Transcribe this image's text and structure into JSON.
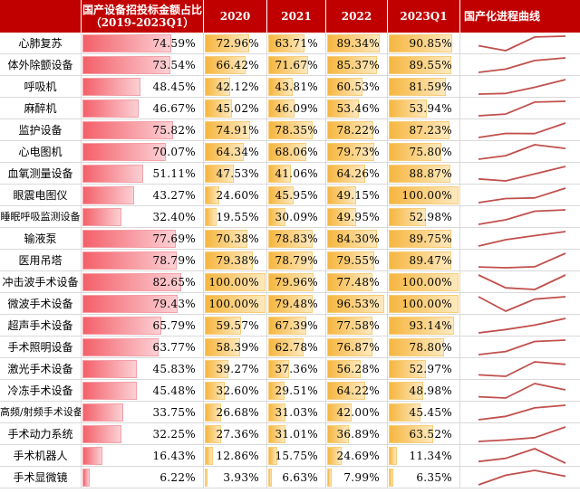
{
  "chart_data": {
    "type": "table",
    "title": "国产设备招投标金额占比",
    "headers": {
      "name": "",
      "total": "国产设备招投标金额占比",
      "total_sub": "（2019-2023Q1）",
      "y2020": "2020",
      "y2021": "2021",
      "y2022": "2022",
      "y2023q1": "2023Q1",
      "trend": "国产化进程曲线"
    },
    "periods": [
      "2020",
      "2021",
      "2022",
      "2023Q1"
    ],
    "colors": {
      "header": "#c00000",
      "red_bar": "#f4606a",
      "orange_bar": "#f6b640",
      "line": "#c0504d"
    },
    "rows": [
      {
        "name": "心肺复苏",
        "total": "74.59%",
        "v2020": "72.96%",
        "v2021": "63.71%",
        "v2022": "89.34%",
        "v2023": "90.85%"
      },
      {
        "name": "体外除颤设备",
        "total": "73.54%",
        "v2020": "66.42%",
        "v2021": "71.67%",
        "v2022": "85.37%",
        "v2023": "89.55%"
      },
      {
        "name": "呼吸机",
        "total": "48.45%",
        "v2020": "42.12%",
        "v2021": "43.81%",
        "v2022": "60.53%",
        "v2023": "81.59%"
      },
      {
        "name": "麻醉机",
        "total": "46.67%",
        "v2020": "45.02%",
        "v2021": "46.09%",
        "v2022": "53.46%",
        "v2023": "53.94%"
      },
      {
        "name": "监护设备",
        "total": "75.82%",
        "v2020": "74.91%",
        "v2021": "78.35%",
        "v2022": "78.22%",
        "v2023": "87.23%"
      },
      {
        "name": "心电图机",
        "total": "70.07%",
        "v2020": "64.34%",
        "v2021": "68.06%",
        "v2022": "79.73%",
        "v2023": "75.80%"
      },
      {
        "name": "血氧测量设备",
        "total": "51.11%",
        "v2020": "47.53%",
        "v2021": "41.06%",
        "v2022": "64.26%",
        "v2023": "88.87%"
      },
      {
        "name": "眼震电图仪",
        "total": "43.27%",
        "v2020": "24.60%",
        "v2021": "45.95%",
        "v2022": "49.15%",
        "v2023": "100.00%"
      },
      {
        "name": "睡眠呼吸监测设备",
        "total": "32.40%",
        "v2020": "19.55%",
        "v2021": "30.09%",
        "v2022": "49.95%",
        "v2023": "52.98%"
      },
      {
        "name": "输液泵",
        "total": "77.69%",
        "v2020": "70.38%",
        "v2021": "78.83%",
        "v2022": "84.30%",
        "v2023": "89.75%"
      },
      {
        "name": "医用吊塔",
        "total": "78.79%",
        "v2020": "79.38%",
        "v2021": "78.79%",
        "v2022": "79.55%",
        "v2023": "89.47%"
      },
      {
        "name": "冲击波手术设备",
        "total": "82.65%",
        "v2020": "100.00%",
        "v2021": "79.96%",
        "v2022": "77.48%",
        "v2023": "100.00%"
      },
      {
        "name": "微波手术设备",
        "total": "79.43%",
        "v2020": "100.00%",
        "v2021": "79.48%",
        "v2022": "96.53%",
        "v2023": "100.00%"
      },
      {
        "name": "超声手术设备",
        "total": "65.79%",
        "v2020": "59.57%",
        "v2021": "67.39%",
        "v2022": "77.58%",
        "v2023": "93.14%"
      },
      {
        "name": "手术照明设备",
        "total": "63.77%",
        "v2020": "58.39%",
        "v2021": "62.78%",
        "v2022": "76.87%",
        "v2023": "78.80%"
      },
      {
        "name": "激光手术设备",
        "total": "45.83%",
        "v2020": "39.27%",
        "v2021": "37.36%",
        "v2022": "56.28%",
        "v2023": "52.97%"
      },
      {
        "name": "冷冻手术设备",
        "total": "45.48%",
        "v2020": "32.60%",
        "v2021": "29.51%",
        "v2022": "64.22%",
        "v2023": "48.98%"
      },
      {
        "name": "高频/射频手术设备",
        "total": "33.75%",
        "v2020": "26.68%",
        "v2021": "31.03%",
        "v2022": "42.00%",
        "v2023": "45.45%"
      },
      {
        "name": "手术动力系统",
        "total": "32.25%",
        "v2020": "27.36%",
        "v2021": "31.01%",
        "v2022": "36.89%",
        "v2023": "63.52%"
      },
      {
        "name": "手术机器人",
        "total": "16.43%",
        "v2020": "12.86%",
        "v2021": "15.75%",
        "v2022": "24.69%",
        "v2023": "11.34%"
      },
      {
        "name": "手术显微镜",
        "total": "6.22%",
        "v2020": "3.93%",
        "v2021": "6.63%",
        "v2022": "7.99%",
        "v2023": "6.35%"
      }
    ]
  }
}
